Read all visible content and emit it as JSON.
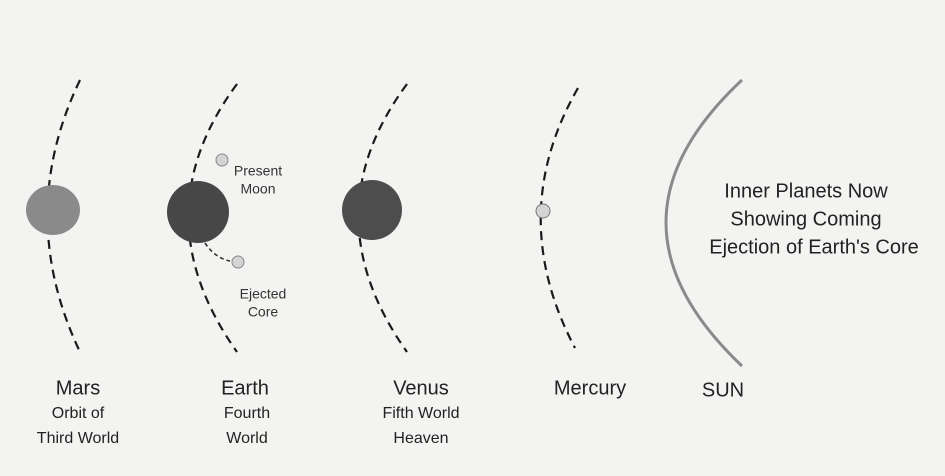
{
  "title": {
    "lines": [
      "Inner Planets Now",
      "Showing Coming",
      "Ejection of Earth's Core"
    ]
  },
  "planets": [
    {
      "name": "Mars",
      "description": [
        "Orbit of",
        "Third World"
      ]
    },
    {
      "name": "Earth",
      "description": [
        "Fourth",
        "World"
      ]
    },
    {
      "name": "Venus",
      "description": [
        "Fifth World",
        "Heaven"
      ]
    },
    {
      "name": "Mercury",
      "description": []
    },
    {
      "name": "SUN",
      "description": []
    }
  ],
  "annotations": {
    "moon": [
      "Present",
      "Moon"
    ],
    "core": [
      "Ejected",
      "Core"
    ]
  }
}
